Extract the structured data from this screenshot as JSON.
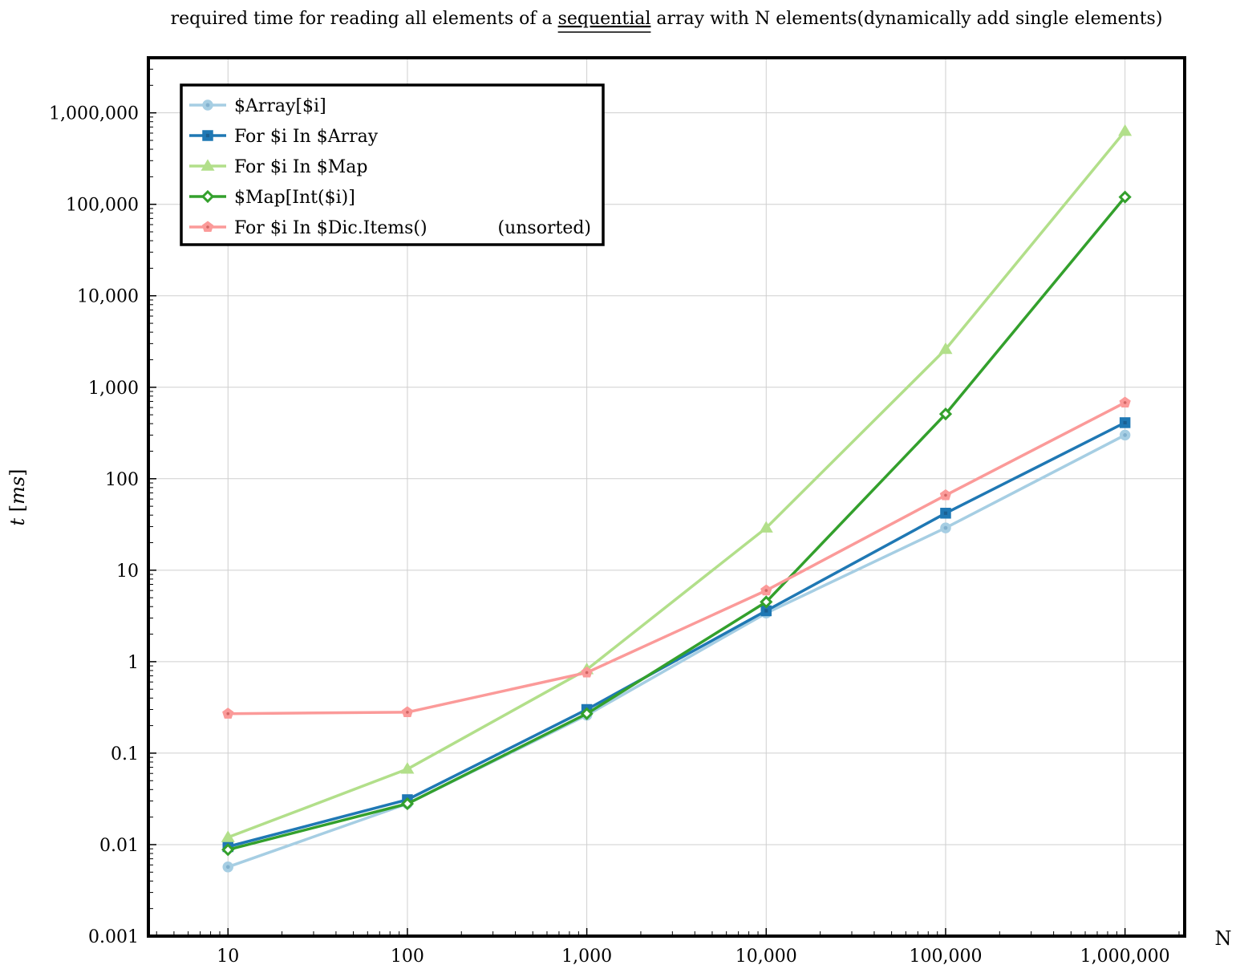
{
  "chart_data": {
    "type": "line",
    "title": {
      "prefix": "required time for reading all elements of a ",
      "underlined": "sequential",
      "suffix": " array with N elements(dynamically add single elements)"
    },
    "xlabel": "N",
    "ylabel": "t [ms]",
    "x_scale": "log",
    "y_scale": "log",
    "xlim": [
      3.6,
      2150000
    ],
    "ylim": [
      0.001,
      4000000
    ],
    "grid": true,
    "legend_position": "top-left",
    "x": [
      10,
      100,
      1000,
      10000,
      100000,
      1000000
    ],
    "x_tick_labels": [
      "10",
      "100",
      "1,000",
      "10,000",
      "100,000",
      "1,000,000"
    ],
    "y_ticks": [
      0.001,
      0.01,
      0.1,
      1,
      10,
      100,
      1000,
      10000,
      100000,
      1000000
    ],
    "y_tick_labels": [
      "0.001",
      "0.01",
      "0.1",
      "1",
      "10",
      "100",
      "1,000",
      "10,000",
      "100,000",
      "1,000,000"
    ],
    "series": [
      {
        "name": "$Array[$i]",
        "color": "#a6cee3",
        "marker": "circle",
        "values": [
          0.0057,
          0.028,
          0.26,
          3.4,
          29,
          300
        ]
      },
      {
        "name": "For $i In $Array",
        "color": "#1f78b4",
        "marker": "square",
        "values": [
          0.0095,
          0.031,
          0.3,
          3.6,
          42,
          410
        ]
      },
      {
        "name": "For $i In $Map",
        "color": "#b2df8a",
        "marker": "triangle",
        "values": [
          0.012,
          0.067,
          0.82,
          29,
          2600,
          630000
        ]
      },
      {
        "name": "$Map[Int($i)]",
        "color": "#33a02c",
        "marker": "diamond",
        "values": [
          0.0088,
          0.028,
          0.27,
          4.5,
          510,
          120000
        ]
      },
      {
        "name": "For $i In $Dic.Items()",
        "note": "(unsorted)",
        "color": "#fb9a99",
        "marker": "pentagon",
        "values": [
          0.27,
          0.28,
          0.76,
          6.0,
          66,
          680
        ]
      }
    ]
  }
}
